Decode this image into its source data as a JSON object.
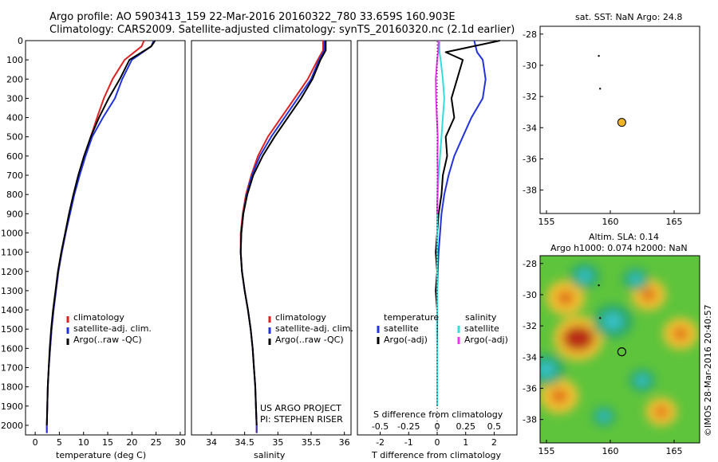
{
  "figure": {
    "title_line1": "Argo profile: AO 5903413_159 22-Mar-2016 20160322_780 33.659S 160.903E",
    "title_line2": "Climatology: CARS2009. Satellite-adjusted climatology: synTS_20160320.nc (2.1d earlier)",
    "credit_text": "©IMOS 28-Mar-2016 20:40:57",
    "project_line1": "US ARGO PROJECT",
    "project_line2": "PI: STEPHEN RISER"
  },
  "colors": {
    "climatology": "#dd2222",
    "satellite": "#2233dd",
    "argo": "#000000",
    "satellite_salinity": "#33dddd",
    "argo_salinity": "#ee33ee",
    "float_marker": "#f0b428"
  },
  "legend": {
    "climatology": "climatology",
    "satellite_adj": "satellite-adj. clim.",
    "argo_raw": "Argo(..raw -QC)",
    "temperature_header": "temperature",
    "salinity_header": "salinity",
    "satellite": "satellite",
    "argo_adj": "Argo(-adj)"
  },
  "chart_data": [
    {
      "type": "line",
      "name": "temperature-profile",
      "xlabel": "temperature (deg C)",
      "ylabel": "",
      "xlim": [
        -2,
        31
      ],
      "ylim": [
        2050,
        0
      ],
      "x_ticks": [
        0,
        5,
        10,
        15,
        20,
        25,
        30
      ],
      "y_ticks": [
        0,
        100,
        200,
        300,
        400,
        500,
        600,
        700,
        800,
        900,
        1000,
        1100,
        1200,
        1300,
        1400,
        1500,
        1600,
        1700,
        1800,
        1900,
        2000
      ],
      "series": [
        {
          "name": "climatology",
          "color_key": "climatology",
          "x": [
            22.5,
            22.0,
            18.5,
            16.0,
            14.2,
            12.8,
            11.5,
            10.2,
            9.0,
            8.0,
            7.1,
            6.3,
            5.5,
            4.8,
            4.3,
            3.8,
            3.4,
            3.1,
            2.8,
            2.6,
            2.5,
            2.4,
            2.4
          ],
          "y": [
            0,
            30,
            100,
            200,
            300,
            400,
            500,
            600,
            700,
            800,
            900,
            1000,
            1100,
            1200,
            1300,
            1400,
            1500,
            1600,
            1700,
            1800,
            1900,
            2000,
            2040
          ]
        },
        {
          "name": "satellite-adj. clim.",
          "color_key": "satellite",
          "x": [
            24.5,
            24.0,
            20.0,
            18.0,
            16.5,
            14.0,
            11.8,
            10.4,
            9.2,
            8.1,
            7.2,
            6.3,
            5.5,
            4.8,
            4.3,
            3.8,
            3.4,
            3.1,
            2.8,
            2.6,
            2.5,
            2.4,
            2.4
          ],
          "y": [
            0,
            30,
            100,
            200,
            300,
            400,
            500,
            600,
            700,
            800,
            900,
            1000,
            1100,
            1200,
            1300,
            1400,
            1500,
            1600,
            1700,
            1800,
            1900,
            2000,
            2040
          ]
        },
        {
          "name": "Argo(..raw -QC)",
          "color_key": "argo",
          "x": [
            24.8,
            24.0,
            19.5,
            17.5,
            15.2,
            13.2,
            11.5,
            10.1,
            8.9,
            7.9,
            7.0,
            6.2,
            5.4,
            4.7,
            4.2,
            3.7,
            3.3,
            3.0,
            2.8,
            2.6,
            2.5,
            2.4
          ],
          "y": [
            0,
            30,
            100,
            200,
            300,
            400,
            500,
            600,
            700,
            800,
            900,
            1000,
            1100,
            1200,
            1300,
            1400,
            1500,
            1600,
            1700,
            1800,
            1900,
            2000
          ]
        }
      ]
    },
    {
      "type": "line",
      "name": "salinity-profile",
      "xlabel": "salinity",
      "ylabel": "",
      "xlim": [
        33.7,
        36.1
      ],
      "ylim": [
        2050,
        0
      ],
      "x_ticks": [
        34,
        34.5,
        35,
        35.5,
        36
      ],
      "series": [
        {
          "name": "climatology",
          "color_key": "climatology",
          "x": [
            35.68,
            35.68,
            35.6,
            35.45,
            35.25,
            35.05,
            34.85,
            34.7,
            34.6,
            34.52,
            34.47,
            34.44,
            34.44,
            34.46,
            34.5,
            34.55,
            34.59,
            34.62,
            34.64,
            34.66,
            34.67,
            34.68,
            34.68
          ],
          "y": [
            0,
            50,
            100,
            200,
            300,
            400,
            500,
            600,
            700,
            800,
            900,
            1000,
            1100,
            1200,
            1300,
            1400,
            1500,
            1600,
            1700,
            1800,
            1900,
            2000,
            2040
          ]
        },
        {
          "name": "satellite-adj. clim.",
          "color_key": "satellite",
          "x": [
            35.7,
            35.7,
            35.62,
            35.5,
            35.3,
            35.1,
            34.9,
            34.73,
            34.61,
            34.53,
            34.48,
            34.45,
            34.44,
            34.46,
            34.5,
            34.55,
            34.59,
            34.62,
            34.64,
            34.66,
            34.67,
            34.68,
            34.68
          ],
          "y": [
            0,
            50,
            100,
            200,
            300,
            400,
            500,
            600,
            700,
            800,
            900,
            1000,
            1100,
            1200,
            1300,
            1400,
            1500,
            1600,
            1700,
            1800,
            1900,
            2000,
            2040
          ]
        },
        {
          "name": "Argo(..raw -QC)",
          "color_key": "argo",
          "x": [
            35.72,
            35.72,
            35.64,
            35.52,
            35.35,
            35.15,
            34.95,
            34.77,
            34.63,
            34.54,
            34.48,
            34.45,
            34.44,
            34.46,
            34.5,
            34.55,
            34.59,
            34.62,
            34.64,
            34.66,
            34.67,
            34.68
          ],
          "y": [
            0,
            50,
            100,
            200,
            300,
            400,
            500,
            600,
            700,
            800,
            900,
            1000,
            1100,
            1200,
            1300,
            1400,
            1500,
            1600,
            1700,
            1800,
            1900,
            2000
          ]
        }
      ]
    },
    {
      "type": "line",
      "name": "difference-profile",
      "xlabel": "T difference from climatology",
      "secondary_xlabel": "S difference from climatology",
      "ylabel": "",
      "xlim": [
        -2.8,
        2.8
      ],
      "ylim": [
        2050,
        0
      ],
      "x_ticks": [
        -2,
        -1,
        0,
        1,
        2
      ],
      "secondary_x_ticks": [
        "-0.5",
        "-0.25",
        "0",
        "0.25",
        "0.5"
      ],
      "series": [
        {
          "name": "temperature satellite",
          "color_key": "satellite",
          "x": [
            1.3,
            1.4,
            1.6,
            1.7,
            1.6,
            1.2,
            0.9,
            0.6,
            0.4,
            0.25,
            0.15,
            0.1,
            0.05,
            0.02,
            0.0,
            0.0,
            0.0,
            0.0,
            0.0,
            0.0,
            0.0
          ],
          "y": [
            0,
            60,
            100,
            200,
            300,
            400,
            500,
            600,
            700,
            800,
            900,
            1000,
            1100,
            1200,
            1300,
            1400,
            1500,
            1600,
            1700,
            1800,
            1900
          ]
        },
        {
          "name": "temperature Argo(-adj)",
          "color_key": "argo",
          "x": [
            2.2,
            0.3,
            0.9,
            0.7,
            0.5,
            0.6,
            0.3,
            0.35,
            0.2,
            0.15,
            0.05,
            0.0,
            -0.05,
            0.0,
            -0.05,
            0.0,
            0.0,
            0.0,
            0.0,
            0.0,
            0.0
          ],
          "y": [
            0,
            60,
            100,
            200,
            300,
            400,
            500,
            600,
            700,
            800,
            900,
            1000,
            1100,
            1200,
            1300,
            1400,
            1500,
            1600,
            1700,
            1800,
            1900
          ]
        },
        {
          "name": "salinity satellite",
          "color_key": "satellite_salinity",
          "x": [
            0.08,
            0.08,
            0.12,
            0.2,
            0.25,
            0.2,
            0.15,
            0.1,
            0.05,
            0.02,
            0.0,
            0.0,
            0.0,
            0.0,
            0.0,
            0.0,
            -0.01,
            0.0,
            0.0,
            0.0,
            0.0
          ],
          "y": [
            0,
            60,
            100,
            200,
            300,
            400,
            500,
            600,
            700,
            800,
            900,
            1000,
            1100,
            1200,
            1300,
            1400,
            1500,
            1600,
            1700,
            1800,
            1900
          ]
        },
        {
          "name": "salinity Argo(-adj)",
          "color_key": "argo_salinity",
          "x": [
            0.05,
            0.03,
            0.0,
            -0.05,
            -0.04,
            -0.01,
            0.02,
            0.01,
            0.02,
            0.01,
            0.0,
            0.0
          ],
          "y": [
            0,
            60,
            100,
            200,
            300,
            400,
            500,
            600,
            700,
            800,
            850,
            900
          ]
        }
      ]
    },
    {
      "type": "scatter",
      "name": "sst-map",
      "title": "sat. SST: NaN Argo: 24.8",
      "xlim": [
        154.5,
        167
      ],
      "ylim": [
        -39.5,
        -27.5
      ],
      "x_ticks": [
        155,
        160,
        165
      ],
      "y_ticks": [
        -28,
        -30,
        -32,
        -34,
        -36,
        -38
      ],
      "track_points": [
        [
          159.1,
          -29.4
        ],
        [
          159.2,
          -31.5
        ]
      ],
      "float_position": [
        160.9,
        -33.66
      ]
    },
    {
      "type": "heatmap",
      "name": "sla-map",
      "title_line1": "Altim. SLA: 0.14",
      "title_line2": "Argo h1000: 0.074 h2000: NaN",
      "xlim": [
        154.5,
        167
      ],
      "ylim": [
        -39.5,
        -27.5
      ],
      "x_ticks": [
        155,
        160,
        165
      ],
      "y_ticks": [
        -28,
        -30,
        -32,
        -34,
        -36,
        -38
      ],
      "track_points": [
        [
          159.1,
          -29.4
        ],
        [
          159.2,
          -31.5
        ]
      ],
      "float_position": [
        160.9,
        -33.66
      ],
      "sla_features": [
        {
          "kind": "high",
          "lon": 157.5,
          "lat": -32.8,
          "value": 0.45
        },
        {
          "kind": "high",
          "lon": 156.5,
          "lat": -30.2,
          "value": 0.3
        },
        {
          "kind": "high",
          "lon": 163.0,
          "lat": -30.0,
          "value": 0.25
        },
        {
          "kind": "high",
          "lon": 165.5,
          "lat": -32.5,
          "value": 0.25
        },
        {
          "kind": "high",
          "lon": 156.0,
          "lat": -36.5,
          "value": 0.3
        },
        {
          "kind": "high",
          "lon": 164.0,
          "lat": -37.5,
          "value": 0.2
        },
        {
          "kind": "low",
          "lon": 160.2,
          "lat": -31.7,
          "value": -0.35
        },
        {
          "kind": "low",
          "lon": 158.0,
          "lat": -28.8,
          "value": -0.2
        },
        {
          "kind": "low",
          "lon": 162.0,
          "lat": -29.0,
          "value": -0.15
        },
        {
          "kind": "low",
          "lon": 155.0,
          "lat": -34.8,
          "value": -0.3
        },
        {
          "kind": "low",
          "lon": 162.5,
          "lat": -35.5,
          "value": -0.15
        },
        {
          "kind": "low",
          "lon": 159.5,
          "lat": -37.8,
          "value": -0.1
        }
      ]
    }
  ]
}
